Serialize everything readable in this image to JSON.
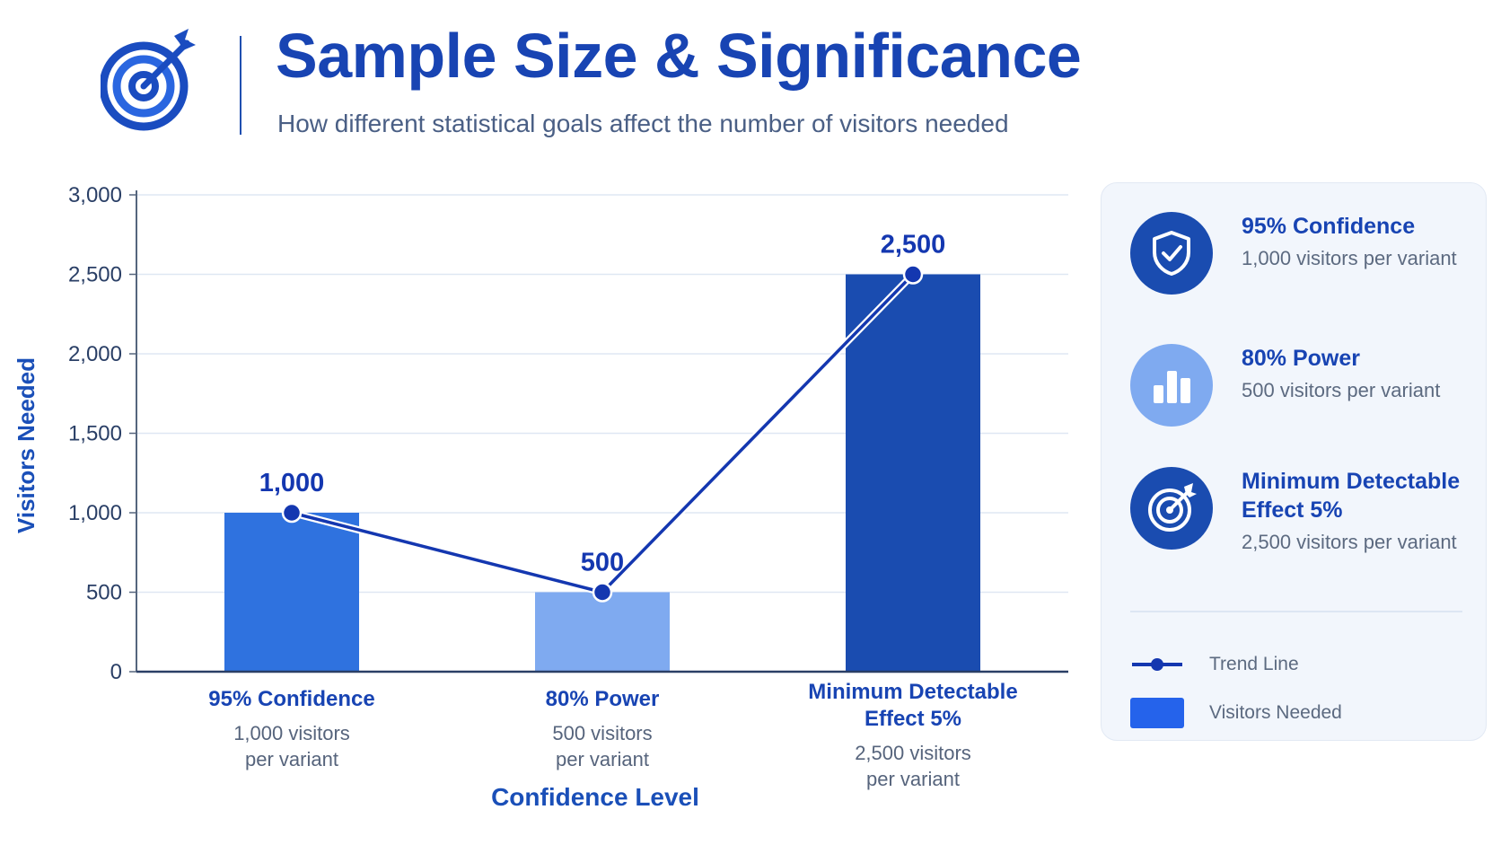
{
  "header": {
    "title": "Sample Size & Significance",
    "subtitle": "How different statistical goals affect the number of visitors needed",
    "logo_icon": "target-arrow-icon"
  },
  "colors": {
    "title": "#1844b3",
    "axis_title": "#1a4fb8",
    "bar_confidence": "#2f72df",
    "bar_power": "#7faaf0",
    "bar_mde": "#1a4cb0",
    "trend_line": "#1437b0",
    "legend_key_bar": "#2563eb"
  },
  "chart_data": {
    "type": "bar",
    "title": "",
    "xlabel": "Confidence Level",
    "ylabel": "Visitors Needed",
    "ylim": [
      0,
      3000
    ],
    "yticks": [
      "0",
      "500",
      "1,000",
      "1,500",
      "2,000",
      "2,500",
      "3,000"
    ],
    "grid": true,
    "categories": [
      {
        "name": [
          "95% Confidence"
        ],
        "sub": [
          "1,000 visitors",
          "per variant"
        ]
      },
      {
        "name": [
          "80% Power"
        ],
        "sub": [
          "500 visitors",
          "per variant"
        ]
      },
      {
        "name": [
          "Minimum Detectable",
          "Effect 5%"
        ],
        "sub": [
          "2,500 visitors",
          "per variant"
        ]
      }
    ],
    "values": [
      1000,
      500,
      2500
    ],
    "value_labels": [
      "1,000",
      "500",
      "2,500"
    ],
    "bar_colors": [
      "#2f72df",
      "#7faaf0",
      "#1a4cb0"
    ],
    "series": [
      {
        "name": "Visitors Needed",
        "kind": "bar",
        "values": [
          1000,
          500,
          2500
        ]
      },
      {
        "name": "Trend Line",
        "kind": "line",
        "values": [
          1000,
          500,
          2500
        ]
      }
    ],
    "legend_position": "right"
  },
  "legend": {
    "items": [
      {
        "title": "95% Confidence",
        "desc": "1,000 visitors per variant",
        "icon": "shield-check-icon",
        "color": "#1a4cb0"
      },
      {
        "title": "80% Power",
        "desc": "500 visitors per variant",
        "icon": "bar-chart-icon",
        "color": "#7faaf0"
      },
      {
        "title": "Minimum Detectable Effect 5%",
        "desc": "2,500 visitors per variant",
        "icon": "target-icon",
        "color": "#1a4cb0"
      }
    ],
    "keys": {
      "line_label": "Trend Line",
      "bar_label": "Visitors Needed"
    }
  }
}
